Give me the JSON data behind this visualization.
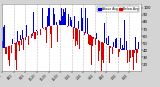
{
  "background_color": "#d4d4d4",
  "plot_bg_color": "#ffffff",
  "bar_color_above": "#0000dd",
  "bar_color_below": "#dd0000",
  "legend_label_blue": "Above Avg",
  "legend_label_red": "Below Avg",
  "ylim": [
    10,
    105
  ],
  "yticks": [
    20,
    30,
    40,
    50,
    60,
    70,
    80,
    90,
    100
  ],
  "n_bars": 365,
  "seed": 42,
  "avg_value": 58,
  "amplitude": 18,
  "noise": 20,
  "grid_color": "#aaaaaa",
  "spine_color": "#888888"
}
